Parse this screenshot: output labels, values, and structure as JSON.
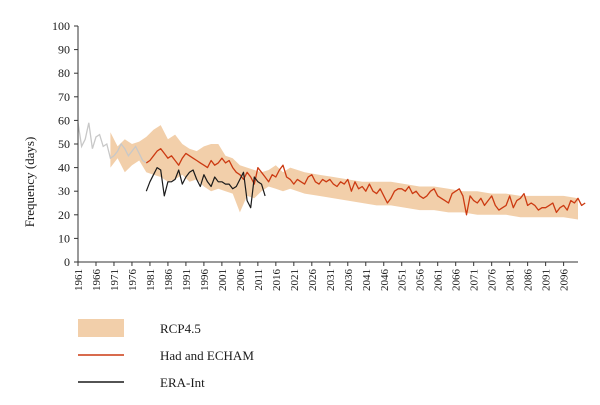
{
  "chart_data": {
    "type": "line",
    "title": "",
    "xlabel": "",
    "ylabel": "Frequency (days)",
    "xlim": [
      1961,
      2100
    ],
    "ylim": [
      0,
      100
    ],
    "y_ticks": [
      0,
      10,
      20,
      30,
      40,
      50,
      60,
      70,
      80,
      90,
      100
    ],
    "x_ticks": [
      "1961",
      "1966",
      "1971",
      "1976",
      "1981",
      "1986",
      "1991",
      "1996",
      "2001",
      "2006",
      "2011",
      "2016",
      "2021",
      "2026",
      "2031",
      "2036",
      "2041",
      "2046",
      "2051",
      "2056",
      "2061",
      "2066",
      "2071",
      "2076",
      "2081",
      "2086",
      "2091",
      "2096"
    ],
    "grid": false,
    "legend_position": "bottom-left",
    "colors": {
      "band": "#f2cfaa",
      "model": "#cc3a12",
      "model_hist": "#c8c8c8",
      "reanalysis": "#1a1a1a",
      "axis": "#333333"
    },
    "series": [
      {
        "name": "RCP4.5",
        "kind": "band",
        "x": [
          1970,
          1972,
          1974,
          1976,
          1978,
          1980,
          1982,
          1984,
          1986,
          1988,
          1990,
          1992,
          1994,
          1996,
          1998,
          2000,
          2002,
          2004,
          2006,
          2008,
          2010,
          2012,
          2014,
          2016,
          2018,
          2020,
          2024,
          2028,
          2032,
          2036,
          2040,
          2044,
          2048,
          2052,
          2056,
          2060,
          2064,
          2068,
          2072,
          2076,
          2080,
          2084,
          2088,
          2092,
          2096,
          2100
        ],
        "upper": [
          55,
          49,
          52,
          50,
          51,
          53,
          56,
          58,
          52,
          54,
          50,
          48,
          47,
          49,
          50,
          50,
          45,
          44,
          41,
          40,
          39,
          38,
          39,
          41,
          38,
          40,
          38,
          37,
          36,
          35,
          34,
          34,
          34,
          33,
          32,
          32,
          31,
          30,
          30,
          29,
          29,
          28,
          28,
          28,
          28,
          27
        ],
        "lower": [
          40,
          44,
          38,
          41,
          43,
          38,
          37,
          36,
          34,
          35,
          37,
          34,
          35,
          32,
          30,
          31,
          30,
          29,
          21,
          28,
          27,
          30,
          32,
          31,
          30,
          31,
          29,
          28,
          27,
          26,
          25,
          24,
          24,
          23,
          22,
          22,
          21,
          21,
          20,
          20,
          20,
          19,
          19,
          19,
          19,
          18
        ]
      },
      {
        "name": "Had and ECHAM",
        "kind": "line",
        "x_start": 1961,
        "hist_end": 1980,
        "values": [
          59,
          49,
          52,
          59,
          48,
          53,
          54,
          49,
          50,
          44,
          45,
          47,
          50,
          48,
          45,
          47,
          49,
          46,
          43,
          42,
          43,
          45,
          47,
          48,
          46,
          44,
          45,
          43,
          41,
          44,
          46,
          45,
          44,
          43,
          42,
          41,
          40,
          43,
          41,
          42,
          44,
          42,
          43,
          40,
          38,
          37,
          35,
          38,
          36,
          33,
          40,
          38,
          36,
          34,
          37,
          36,
          39,
          41,
          36,
          35,
          33,
          35,
          34,
          33,
          36,
          37,
          34,
          33,
          35,
          34,
          35,
          33,
          32,
          34,
          33,
          35,
          30,
          34,
          31,
          32,
          30,
          33,
          30,
          29,
          31,
          28,
          25,
          27,
          30,
          31,
          31,
          30,
          32,
          29,
          30,
          28,
          27,
          28,
          30,
          31,
          28,
          27,
          26,
          25,
          29,
          30,
          31,
          28,
          20,
          28,
          26,
          25,
          27,
          24,
          26,
          28,
          24,
          22,
          23,
          24,
          28,
          23,
          26,
          27,
          29,
          24,
          25,
          24,
          22,
          23,
          23,
          24,
          25,
          21,
          23,
          24,
          22,
          26,
          25,
          27,
          24,
          25
        ],
        "history_name": "",
        "colors_note": ""
      },
      {
        "name": "ERA-Int",
        "kind": "line",
        "x_start": 1980,
        "values": [
          30,
          34,
          37,
          40,
          39,
          28,
          34,
          34,
          35,
          39,
          33,
          36,
          38,
          39,
          35,
          32,
          37,
          34,
          32,
          36,
          34,
          34,
          33,
          33,
          31,
          32,
          35,
          38,
          26,
          23,
          36,
          34,
          33,
          28
        ]
      }
    ]
  }
}
